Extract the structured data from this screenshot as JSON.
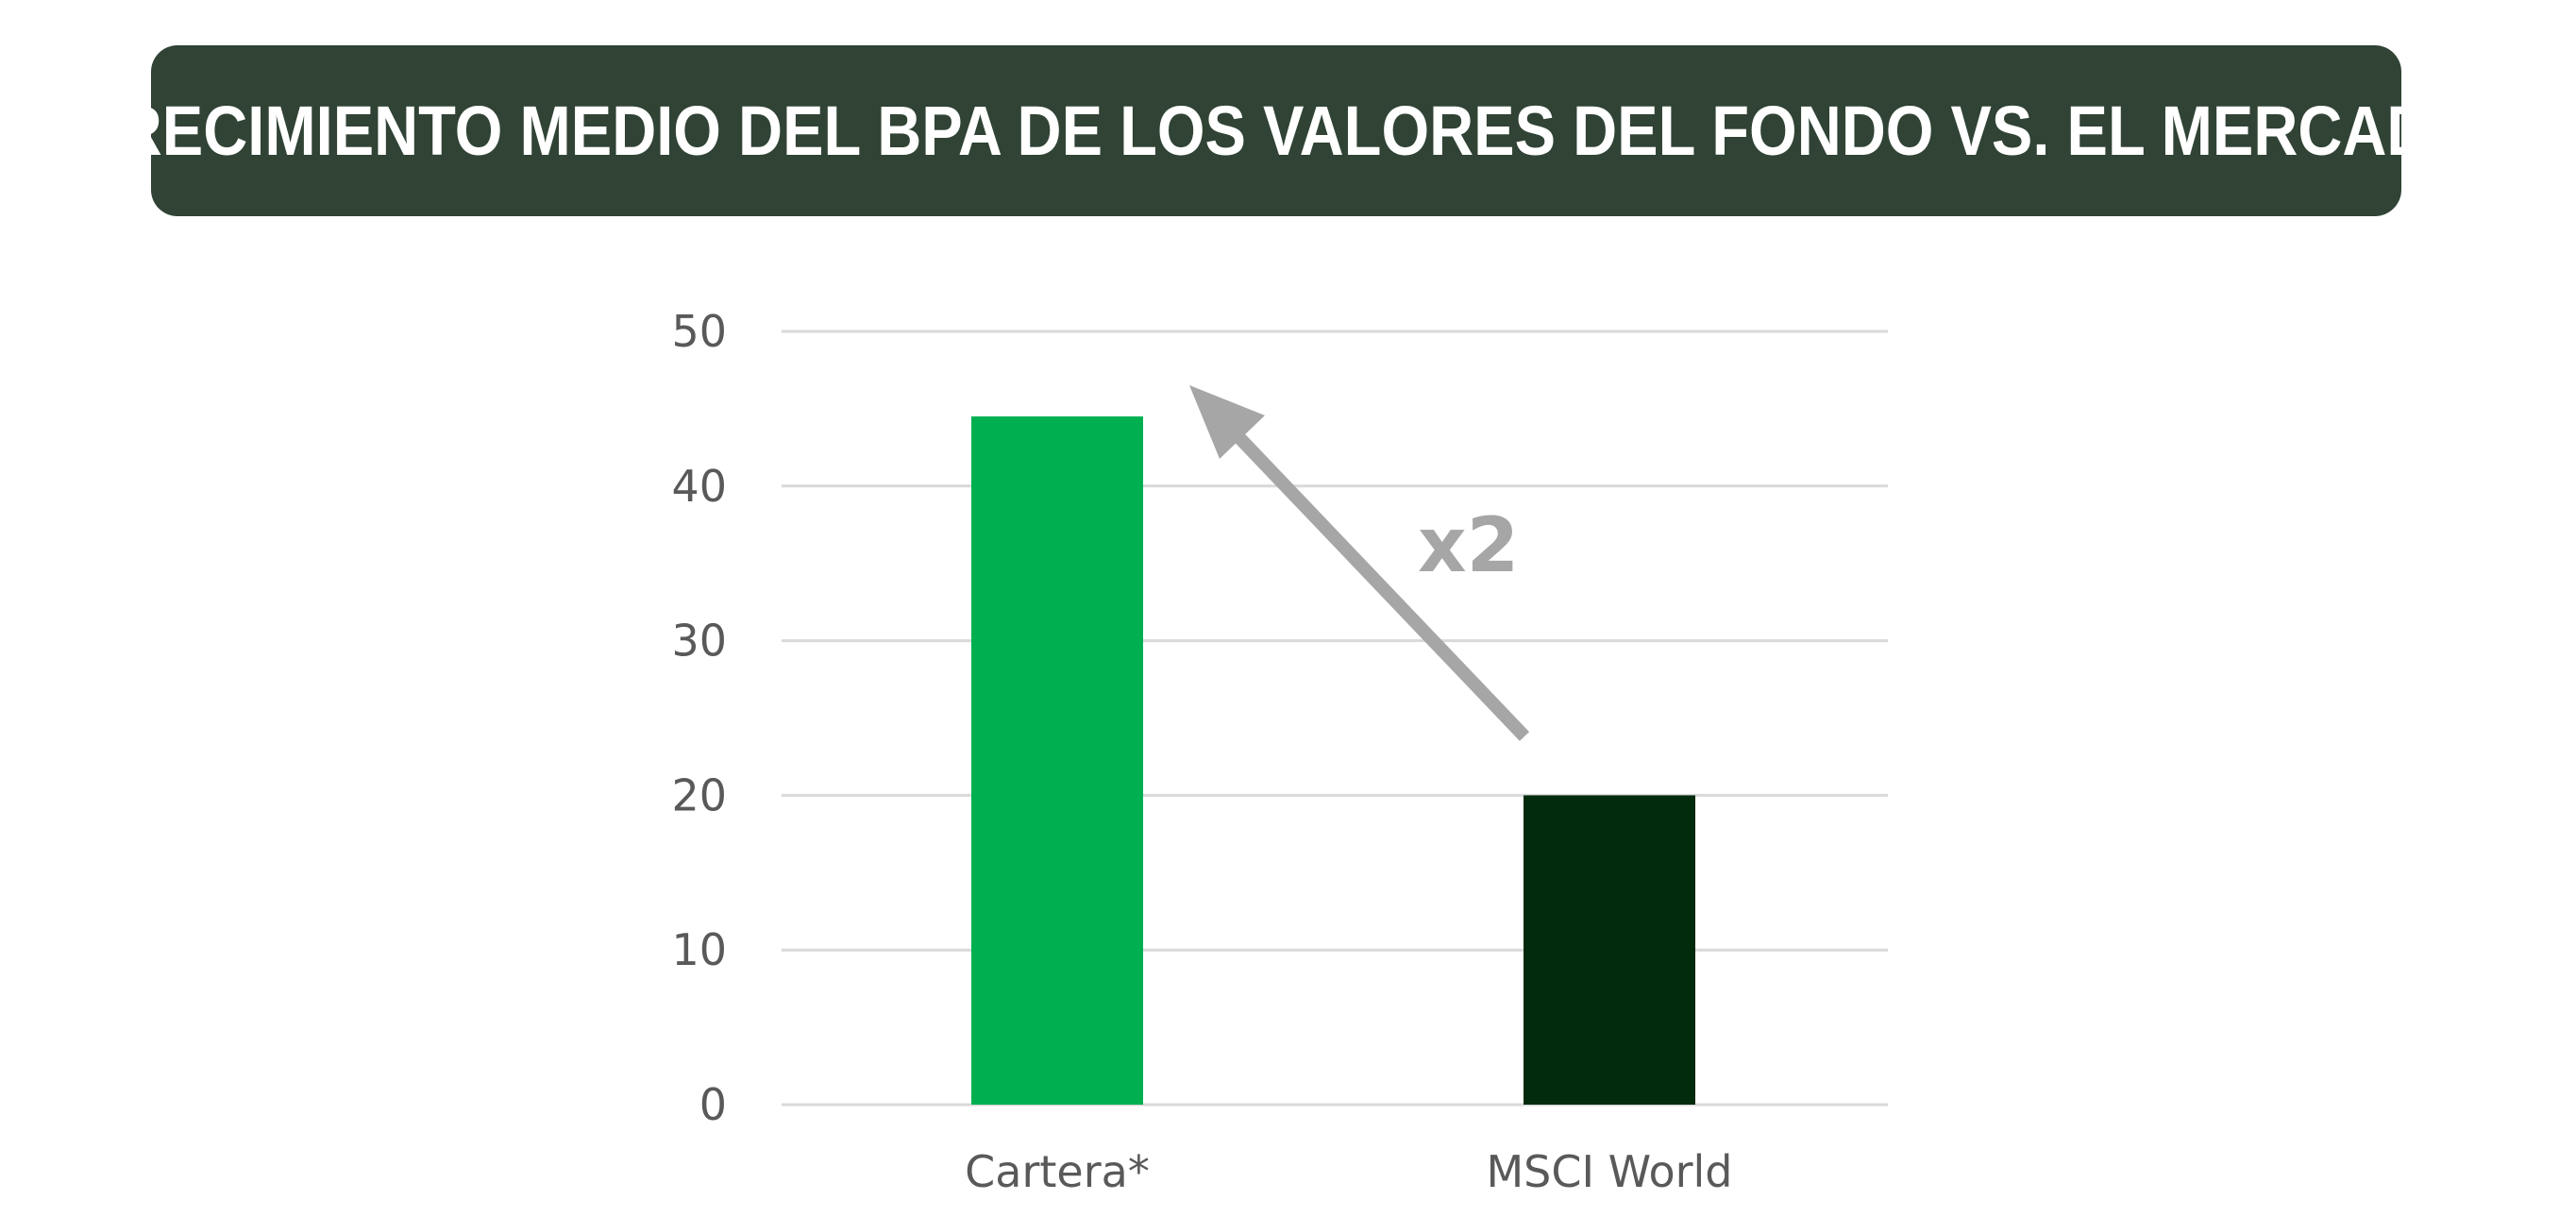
{
  "title": "CRECIMIENTO MEDIO DEL BPA DE LOS VALORES DEL FONDO VS. EL MERCADO",
  "colors": {
    "banner": "#304334",
    "bar_cartera": "#00b050",
    "bar_msci": "#022a0c",
    "grid": "#d9d9d9",
    "axis_text": "#595959",
    "arrow": "#a6a6a6"
  },
  "annotation": {
    "text": "x2",
    "icon": "arrow-up-left"
  },
  "chart_data": {
    "type": "bar",
    "categories": [
      "Cartera*",
      "MSCI World"
    ],
    "values": [
      44.5,
      20
    ],
    "ylim": [
      0,
      50
    ],
    "yticks": [
      0,
      10,
      20,
      30,
      40,
      50
    ],
    "grid": true,
    "title": "",
    "xlabel": "",
    "ylabel": ""
  }
}
